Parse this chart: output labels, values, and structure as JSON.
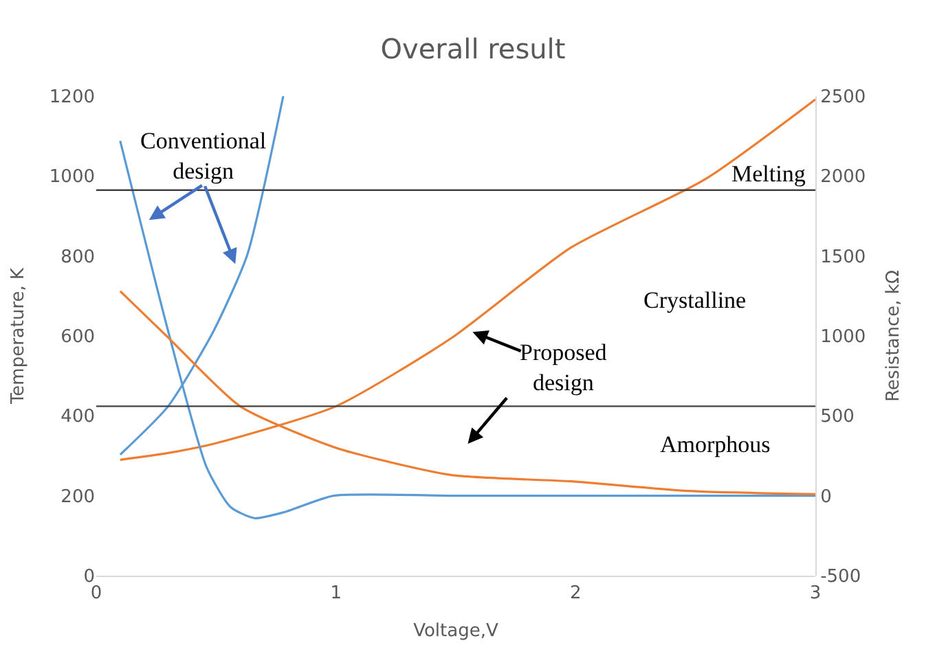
{
  "chart_data": {
    "type": "line",
    "title": "Overall result",
    "xlabel": "Voltage,V",
    "ylabel": "Temperature, K",
    "y2label": "Resistance, kΩ",
    "xlim": [
      0,
      3
    ],
    "xticks": [
      0,
      1,
      2,
      3
    ],
    "ylim": [
      0,
      1200
    ],
    "yticks": [
      0,
      200,
      400,
      600,
      800,
      1000,
      1200
    ],
    "y2lim": [
      -500,
      2500
    ],
    "y2ticks": [
      -500,
      0,
      500,
      1000,
      1500,
      2000,
      2500
    ],
    "series": [
      {
        "color": "#5b9bd5",
        "x": [
          0.1,
          0.3,
          0.49,
          0.63,
          0.78
        ],
        "values": [
          303,
          424,
          613,
          803,
          1200
        ]
      },
      {
        "color": "#5b9bd5",
        "axis": "y2",
        "x": [
          0.1,
          0.3,
          0.46,
          0.56,
          0.66,
          0.79,
          0.99,
          1.5,
          2,
          2.5,
          3
        ],
        "values": [
          2220,
          1030,
          180,
          -70,
          -140,
          -100,
          0,
          0,
          0,
          0,
          0
        ]
      },
      {
        "color": "#ed7d31",
        "x": [
          0.1,
          0.3,
          0.49,
          1,
          1.48,
          1.98,
          2.54,
          3
        ],
        "values": [
          290,
          307,
          330,
          424,
          594,
          821,
          992,
          1192
        ]
      },
      {
        "color": "#ed7d31",
        "axis": "y2",
        "x": [
          0.1,
          0.3,
          0.6,
          1,
          1.48,
          1.98,
          2.47,
          3
        ],
        "values": [
          1280,
          990,
          560,
          300,
          130,
          90,
          30,
          10
        ]
      }
    ],
    "ref_lines": [
      {
        "axis": "y",
        "value": 965,
        "label": "Melting",
        "color": "#404040"
      },
      {
        "axis": "y",
        "value": 424,
        "label": null,
        "color": "#404040"
      }
    ],
    "annotations": [
      "Conventional design",
      "Crystalline",
      "Proposed design",
      "Amorphous"
    ],
    "marker": "none",
    "line_style": "solid"
  }
}
